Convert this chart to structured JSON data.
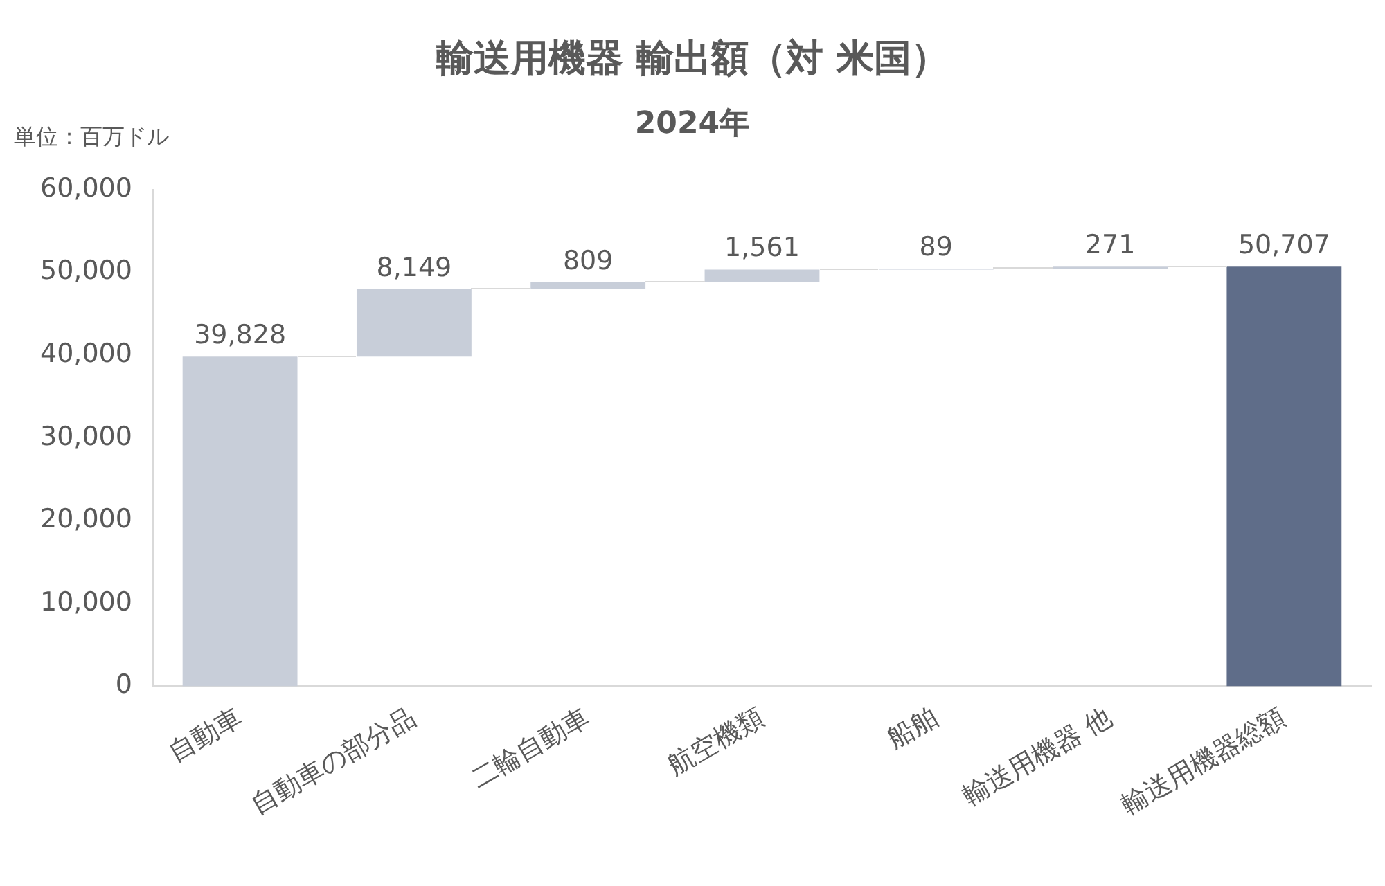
{
  "chart_data": {
    "type": "bar",
    "title": "輸送用機器 輸出額（対 米国）",
    "subtitle": "2024年",
    "ylabel": "単位：百万ドル",
    "categories": [
      "自動車",
      "自動車の部分品",
      "二輪自動車",
      "航空機類",
      "船舶",
      "輸送用機器 他",
      "輸送用機器総額"
    ],
    "values": [
      39828,
      8149,
      809,
      1561,
      89,
      271,
      50707
    ],
    "value_labels": [
      "39,828",
      "8,149",
      "809",
      "1,561",
      "89",
      "271",
      "50,707"
    ],
    "base": [
      0,
      39828,
      47977,
      48786,
      50347,
      50436,
      0
    ],
    "colors": [
      "#c8ced9",
      "#c8ced9",
      "#c8ced9",
      "#c8ced9",
      "#c8ced9",
      "#c8ced9",
      "#5f6d89"
    ],
    "ylim": [
      0,
      60000
    ],
    "yticks": [
      0,
      {
        "value": 10000,
        "label": "10,000"
      },
      {
        "value": 20000,
        "label": "20,000"
      },
      {
        "value": 30000,
        "label": "30,000"
      },
      {
        "value": 40000,
        "label": "40,000"
      },
      {
        "value": 50000,
        "label": "50,000"
      },
      {
        "value": 60000,
        "label": "60,000"
      }
    ],
    "grid": false,
    "legend": false
  }
}
